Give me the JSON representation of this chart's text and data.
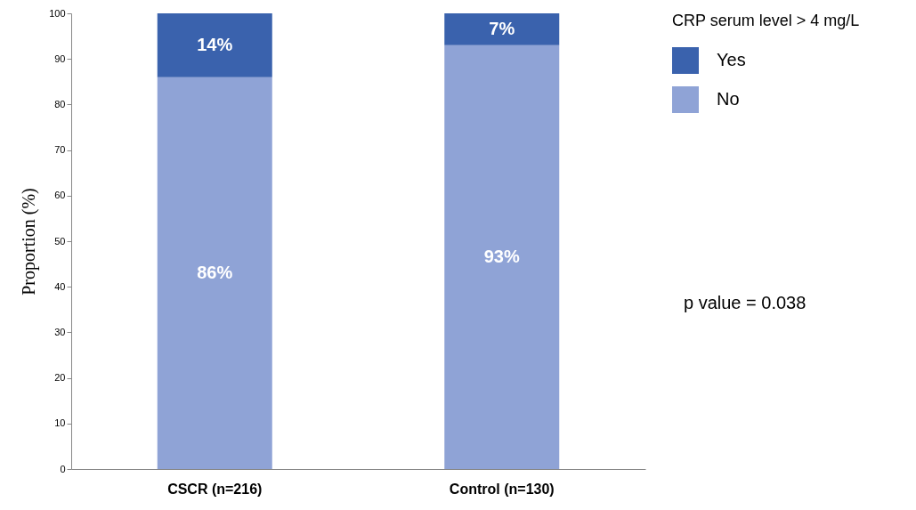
{
  "chart_data": {
    "type": "bar",
    "stacked": true,
    "categories": [
      "CSCR (n=216)",
      "Control (n=130)"
    ],
    "series": [
      {
        "name": "No",
        "color": "#8fa3d6",
        "values": [
          86,
          93
        ],
        "value_labels": [
          "86%",
          "93%"
        ]
      },
      {
        "name": "Yes",
        "color": "#3a62ad",
        "values": [
          14,
          7
        ],
        "value_labels": [
          "14%",
          "7%"
        ]
      }
    ],
    "ylabel": "Proportion (%)",
    "ylim": [
      0,
      100
    ],
    "yticks": [
      0,
      10,
      20,
      30,
      40,
      50,
      60,
      70,
      80,
      90,
      100
    ],
    "legend_title": "CRP serum level > 4 mg/L",
    "legend": "right",
    "grid": false,
    "annotations": [
      "p value = 0.038"
    ]
  }
}
